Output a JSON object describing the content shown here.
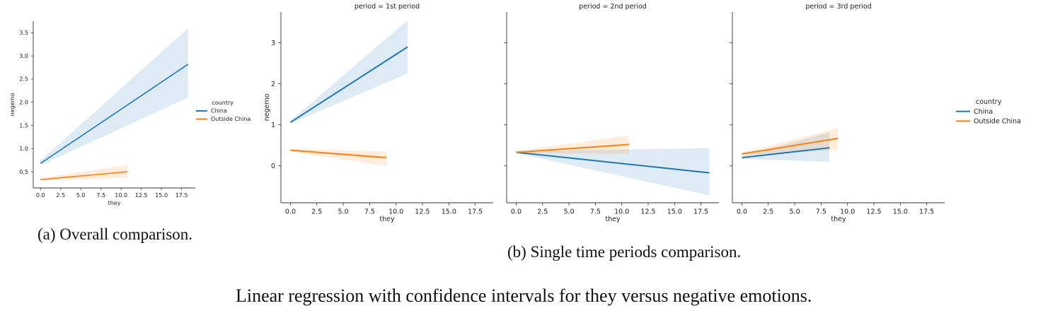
{
  "colors": {
    "china": "#1f77b4",
    "outside": "#ff7f0e"
  },
  "captions": {
    "a": "(a) Overall comparison.",
    "b": "(b) Single time periods comparison.",
    "main": "Linear regression with confidence intervals for they versus negative emotions."
  },
  "chart_data": [
    {
      "type": "line",
      "title": "",
      "xlabel": "they",
      "ylabel": "negemo",
      "xlim": [
        -0.9,
        19.2
      ],
      "ylim": [
        0.15,
        3.75
      ],
      "xticks": [
        "0.0",
        "2.5",
        "5.0",
        "7.5",
        "10.0",
        "12.5",
        "15.0",
        "17.5"
      ],
      "yticks": [
        "0.5",
        "1.0",
        "1.5",
        "2.0",
        "2.5",
        "3.0",
        "3.5"
      ],
      "legend": {
        "title": "country",
        "entries": [
          "China",
          "Outside China"
        ],
        "placement": "right"
      },
      "series": [
        {
          "name": "China",
          "x": [
            0,
            18.3
          ],
          "y": [
            0.68,
            2.82
          ],
          "ci_lower": [
            0.64,
            2.1
          ],
          "ci_upper": [
            0.74,
            3.6
          ]
        },
        {
          "name": "Outside China",
          "x": [
            0,
            10.8
          ],
          "y": [
            0.33,
            0.5
          ],
          "ci_lower": [
            0.31,
            0.37
          ],
          "ci_upper": [
            0.36,
            0.65
          ]
        }
      ]
    },
    {
      "type": "line",
      "title": "period = 1st period",
      "xlabel": "they",
      "ylabel": "negemo",
      "xlim": [
        -0.9,
        19.2
      ],
      "ylim": [
        -0.9,
        3.75
      ],
      "xticks": [
        "0.0",
        "2.5",
        "5.0",
        "7.5",
        "10.0",
        "12.5",
        "15.0",
        "17.5"
      ],
      "yticks": [
        "0",
        "1",
        "2",
        "3"
      ],
      "series": [
        {
          "name": "China",
          "x": [
            0,
            11.1
          ],
          "y": [
            1.06,
            2.9
          ],
          "ci_lower": [
            1.03,
            2.25
          ],
          "ci_upper": [
            1.1,
            3.55
          ]
        },
        {
          "name": "Outside China",
          "x": [
            0,
            9.1
          ],
          "y": [
            0.38,
            0.2
          ],
          "ci_lower": [
            0.35,
            0.0
          ],
          "ci_upper": [
            0.41,
            0.35
          ]
        }
      ]
    },
    {
      "type": "line",
      "title": "period = 2nd period",
      "xlabel": "they",
      "ylabel": "",
      "xlim": [
        -0.9,
        19.2
      ],
      "ylim": [
        -0.9,
        3.75
      ],
      "xticks": [
        "0.0",
        "2.5",
        "5.0",
        "7.5",
        "10.0",
        "12.5",
        "15.0",
        "17.5"
      ],
      "yticks": [
        "0",
        "1",
        "2",
        "3"
      ],
      "series": [
        {
          "name": "China",
          "x": [
            0,
            18.3
          ],
          "y": [
            0.33,
            -0.17
          ],
          "ci_lower": [
            0.31,
            -0.72
          ],
          "ci_upper": [
            0.36,
            0.43
          ]
        },
        {
          "name": "Outside China",
          "x": [
            0,
            10.7
          ],
          "y": [
            0.33,
            0.52
          ],
          "ci_lower": [
            0.31,
            0.3
          ],
          "ci_upper": [
            0.36,
            0.74
          ]
        }
      ]
    },
    {
      "type": "line",
      "title": "period = 3rd period",
      "xlabel": "they",
      "ylabel": "",
      "xlim": [
        -0.9,
        19.2
      ],
      "ylim": [
        -0.9,
        3.75
      ],
      "xticks": [
        "0.0",
        "2.5",
        "5.0",
        "7.5",
        "10.0",
        "12.5",
        "15.0",
        "17.5"
      ],
      "yticks": [
        "0",
        "1",
        "2",
        "3"
      ],
      "legend": {
        "title": "country",
        "entries": [
          "China",
          "Outside China"
        ],
        "placement": "right"
      },
      "series": [
        {
          "name": "China",
          "x": [
            0,
            8.3
          ],
          "y": [
            0.2,
            0.44
          ],
          "ci_lower": [
            0.17,
            0.1
          ],
          "ci_upper": [
            0.23,
            0.82
          ]
        },
        {
          "name": "Outside China",
          "x": [
            0,
            9.1
          ],
          "y": [
            0.29,
            0.67
          ],
          "ci_lower": [
            0.26,
            0.38
          ],
          "ci_upper": [
            0.32,
            0.92
          ]
        }
      ]
    }
  ]
}
